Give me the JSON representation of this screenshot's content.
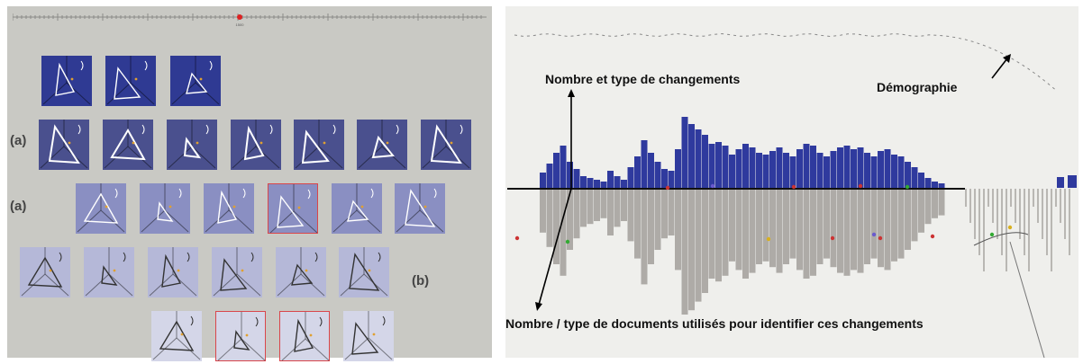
{
  "left_figure": {
    "row_labels": [
      "(a)",
      "(a)",
      "(b)"
    ],
    "timeline_marker_text": "1500",
    "colors": {
      "row1": "#2f3a93",
      "row2": "#4a508e",
      "row3": "#8a8fc2",
      "row4": "#b5b8d8",
      "row5": "#d4d6e8",
      "highlight": "#d9464b"
    }
  },
  "right_figure": {
    "annotations": {
      "changes": "Nombre et type de changements",
      "demography": "Démographie",
      "documents": "Nombre / type de documents utilisés pour identifier ces changements"
    },
    "colors": {
      "bars": "#2f3a9e",
      "shadow": "#a29f9b",
      "background": "#efefec"
    }
  }
}
